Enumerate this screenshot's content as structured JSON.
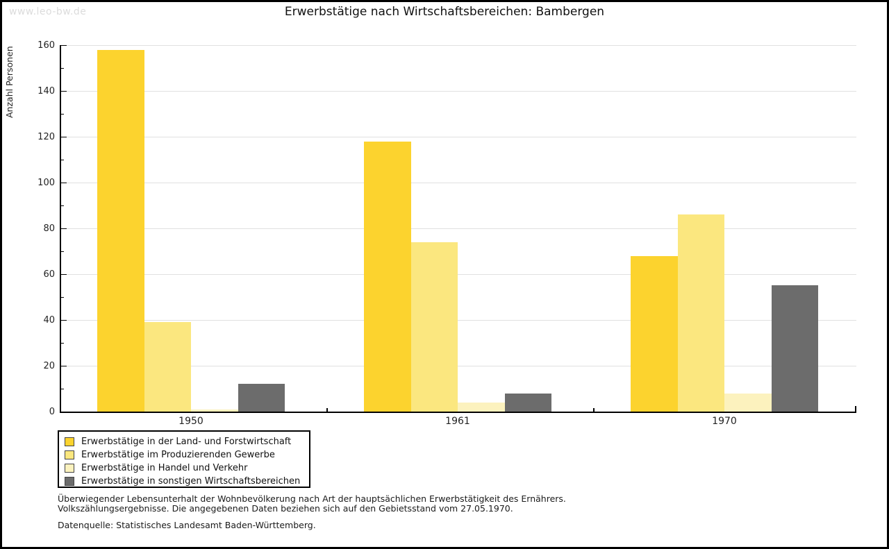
{
  "watermark": "www.leo-bw.de",
  "title": "Erwerbstätige nach Wirtschaftsbereichen: Bambergen",
  "chart_data": {
    "type": "bar",
    "title": "Erwerbstätige nach Wirtschaftsbereichen: Bambergen",
    "xlabel": "",
    "ylabel": "Anzahl Personen",
    "categories": [
      "1950",
      "1961",
      "1970"
    ],
    "series": [
      {
        "name": "Erwerbstätige in der Land- und Forstwirtschaft",
        "color": "#FCD32E",
        "values": [
          158,
          118,
          68
        ]
      },
      {
        "name": "Erwerbstätige im Produzierenden Gewerbe",
        "color": "#FBE77F",
        "values": [
          39,
          74,
          86
        ]
      },
      {
        "name": "Erwerbstätige in Handel und Verkehr",
        "color": "#FCF2BE",
        "values": [
          1,
          4,
          8
        ]
      },
      {
        "name": "Erwerbstätige in sonstigen Wirtschaftsbereichen",
        "color": "#6C6C6C",
        "values": [
          12,
          8,
          55
        ]
      }
    ],
    "ylim": [
      0,
      160
    ],
    "ytick_step": 20,
    "yminor_step": 10,
    "grid": true,
    "legend_position": "bottom-left"
  },
  "footnotes": {
    "line1": "Überwiegender Lebensunterhalt der Wohnbevölkerung nach Art der hauptsächlichen Erwerbstätigkeit des Ernährers.",
    "line2": "Volkszählungsergebnisse. Die angegebenen Daten beziehen sich auf den Gebietsstand vom 27.05.1970.",
    "source": "Datenquelle: Statistisches Landesamt Baden-Württemberg."
  },
  "colors": {
    "grid": "#E0E0E0",
    "axis": "#000000",
    "watermark": "#DCDCDC"
  }
}
